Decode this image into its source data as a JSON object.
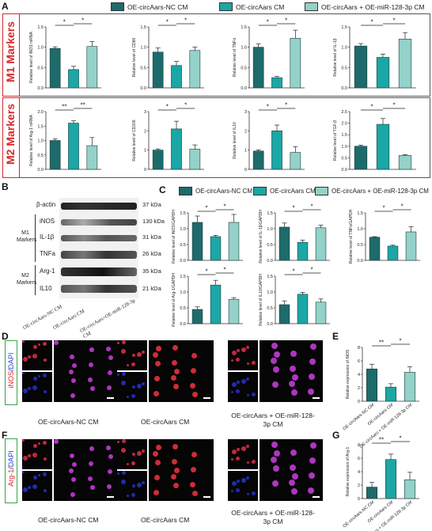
{
  "panel_labels": {
    "a": "A",
    "b": "B",
    "c": "C",
    "d": "D",
    "e": "E",
    "f": "F",
    "g": "G"
  },
  "colors": {
    "nc": "#1d6b6b",
    "oe": "#1aa7a5",
    "inh": "#93d1c9",
    "red": "#d9252a",
    "bar_edge": "#1f3b3b"
  },
  "legend_top": [
    {
      "label": "OE-circAars-NC CM",
      "color": "#1d6b6b"
    },
    {
      "label": "OE-circAars CM",
      "color": "#1aa7a5"
    },
    {
      "label": "OE-circAars + OE-miR-128-3p CM",
      "color": "#93d1c9"
    }
  ],
  "legend_c": [
    {
      "label": "OE-circAars-NC CM",
      "color": "#1d6b6b"
    },
    {
      "label": "OE-circAars CM",
      "color": "#1aa7a5"
    },
    {
      "label": "OE-circAars + OE-miR-128-3p CM",
      "color": "#93d1c9"
    }
  ],
  "sections": {
    "m1": "M1 Markers",
    "m2": "M2 Markers"
  },
  "sig": {
    "ss": "*",
    "dd": "**"
  },
  "chart_data": [
    {
      "type": "bar",
      "panel": "A",
      "ylabel": "Relative level of iNOS mRNA",
      "ylim": [
        0,
        1.5
      ],
      "ticks": [
        "0.0",
        "0.5",
        "1.0",
        "1.5"
      ],
      "values": [
        0.97,
        0.45,
        1.02
      ],
      "errors": [
        0.04,
        0.08,
        0.12
      ],
      "sig": [
        [
          "*",
          0,
          1
        ],
        [
          "*",
          1,
          2
        ]
      ]
    },
    {
      "type": "bar",
      "panel": "A",
      "ylabel": "Relative level of CD86",
      "ylim": [
        0,
        1.5
      ],
      "ticks": [
        "0.0",
        "0.5",
        "1.0",
        "1.5"
      ],
      "values": [
        0.88,
        0.55,
        0.92
      ],
      "errors": [
        0.1,
        0.1,
        0.08
      ],
      "sig": [
        [
          "*",
          0,
          1
        ],
        [
          "*",
          1,
          2
        ]
      ]
    },
    {
      "type": "bar",
      "panel": "A",
      "ylabel": "Relative level of TNFα",
      "ylim": [
        0,
        1.5
      ],
      "ticks": [
        "0.0",
        "0.5",
        "1.0",
        "1.5"
      ],
      "values": [
        1.0,
        0.25,
        1.22
      ],
      "errors": [
        0.08,
        0.03,
        0.2
      ],
      "sig": [
        [
          "*",
          0,
          1
        ],
        [
          "*",
          1,
          2
        ]
      ]
    },
    {
      "type": "bar",
      "panel": "A",
      "ylabel": "Relative level of IL-1β",
      "ylim": [
        0,
        1.5
      ],
      "ticks": [
        "0.0",
        "0.5",
        "1.0",
        "1.5"
      ],
      "values": [
        1.03,
        0.75,
        1.2
      ],
      "errors": [
        0.06,
        0.08,
        0.16
      ],
      "sig": [
        [
          "*",
          0,
          1
        ],
        [
          "*",
          1,
          2
        ]
      ]
    },
    {
      "type": "bar",
      "panel": "A",
      "ylabel": "Relative level of Arg-1 mRNA",
      "ylim": [
        0,
        2.0
      ],
      "ticks": [
        "0.0",
        "0.5",
        "1.0",
        "1.5",
        "2.0"
      ],
      "values": [
        1.0,
        1.6,
        0.82
      ],
      "errors": [
        0.05,
        0.08,
        0.28
      ],
      "sig": [
        [
          "**",
          0,
          1
        ],
        [
          "**",
          1,
          2
        ]
      ]
    },
    {
      "type": "bar",
      "panel": "A",
      "ylabel": "Relative level of CD206",
      "ylim": [
        0,
        3
      ],
      "ticks": [
        "0",
        "1",
        "2",
        "3"
      ],
      "values": [
        1.0,
        2.1,
        1.05
      ],
      "errors": [
        0.06,
        0.4,
        0.22
      ],
      "sig": [
        [
          "*",
          0,
          1
        ],
        [
          "*",
          1,
          2
        ]
      ]
    },
    {
      "type": "bar",
      "panel": "A",
      "ylabel": "Relative level of IL10",
      "ylim": [
        0,
        3
      ],
      "ticks": [
        "0",
        "1",
        "2",
        "3"
      ],
      "values": [
        0.95,
        2.0,
        0.88
      ],
      "errors": [
        0.06,
        0.3,
        0.3
      ],
      "sig": [
        [
          "*",
          0,
          1
        ],
        [
          "*",
          1,
          2
        ]
      ]
    },
    {
      "type": "bar",
      "panel": "A",
      "ylabel": "Relative level of TGF-β",
      "ylim": [
        0,
        2.5
      ],
      "ticks": [
        "0.0",
        "0.5",
        "1.0",
        "1.5",
        "2.0",
        "2.5"
      ],
      "values": [
        1.0,
        1.95,
        0.6
      ],
      "errors": [
        0.05,
        0.25,
        0.04
      ],
      "sig": [
        [
          "*",
          0,
          1
        ],
        [
          "*",
          1,
          2
        ]
      ]
    },
    {
      "type": "bar",
      "panel": "C",
      "ylabel": "Relative level of iNOS/GAPDH",
      "ylim": [
        0,
        1.5
      ],
      "ticks": [
        "0.0",
        "0.5",
        "1.0",
        "1.5"
      ],
      "values": [
        1.2,
        0.75,
        1.2
      ],
      "errors": [
        0.2,
        0.04,
        0.25
      ],
      "sig": [
        [
          "*",
          0,
          1
        ],
        [
          "*",
          1,
          2
        ]
      ]
    },
    {
      "type": "bar",
      "panel": "C",
      "ylabel": "Relative level of IL-1β/GAPDH",
      "ylim": [
        0,
        1.5
      ],
      "ticks": [
        "0.0",
        "0.5",
        "1.0",
        "1.5"
      ],
      "values": [
        1.05,
        0.57,
        1.03
      ],
      "errors": [
        0.13,
        0.07,
        0.08
      ],
      "sig": [
        [
          "*",
          0,
          1
        ],
        [
          "*",
          1,
          2
        ]
      ]
    },
    {
      "type": "bar",
      "panel": "C",
      "ylabel": "Relative level of TNFα/GAPDH",
      "ylim": [
        0,
        1.5
      ],
      "ticks": [
        "0.0",
        "0.5",
        "1.0",
        "1.5"
      ],
      "values": [
        0.73,
        0.45,
        0.9
      ],
      "errors": [
        0.02,
        0.03,
        0.16
      ],
      "sig": [
        [
          "*",
          0,
          1
        ],
        [
          "*",
          1,
          2
        ]
      ]
    },
    {
      "type": "bar",
      "panel": "C",
      "ylabel": "Relative level of Arg-1/GAPDH",
      "ylim": [
        0,
        1.5
      ],
      "ticks": [
        "0.0",
        "0.5",
        "1.0",
        "1.5"
      ],
      "values": [
        0.45,
        1.22,
        0.77
      ],
      "errors": [
        0.08,
        0.15,
        0.05
      ],
      "sig": [
        [
          "*",
          0,
          1
        ],
        [
          "*",
          1,
          2
        ]
      ]
    },
    {
      "type": "bar",
      "panel": "C",
      "ylabel": "Relative level of IL10/GAPDH",
      "ylim": [
        0,
        1.5
      ],
      "ticks": [
        "0.0",
        "0.5",
        "1.0",
        "1.5"
      ],
      "values": [
        0.6,
        0.93,
        0.68
      ],
      "errors": [
        0.12,
        0.06,
        0.1
      ],
      "sig": [
        [
          "*",
          0,
          1
        ],
        [
          "*",
          1,
          2
        ]
      ]
    },
    {
      "type": "bar",
      "panel": "E",
      "ylabel": "Relative expression of iNOS",
      "ylim": [
        0,
        8
      ],
      "ticks": [
        "0",
        "2",
        "4",
        "6",
        "8"
      ],
      "categories": [
        "OE-circAars-NC CM",
        "OE-circAars CM",
        "OE-circAars + OE-miR-128-3p CM"
      ],
      "values": [
        4.8,
        2.1,
        4.3
      ],
      "errors": [
        0.7,
        0.5,
        0.8
      ],
      "sig": [
        [
          "**",
          0,
          1
        ],
        [
          "*",
          1,
          2
        ]
      ]
    },
    {
      "type": "bar",
      "panel": "G",
      "ylabel": "Relative expression of Arg-1",
      "ylim": [
        0,
        8
      ],
      "ticks": [
        "0",
        "2",
        "4",
        "6",
        "8"
      ],
      "categories": [
        "OE-circAars-NC CM",
        "OE-circAars CM",
        "OE-circAars + OE-miR-128-3p CM"
      ],
      "values": [
        1.7,
        5.8,
        2.8
      ],
      "errors": [
        0.7,
        0.8,
        1.1
      ],
      "sig": [
        [
          "**",
          0,
          1
        ],
        [
          "*",
          1,
          2
        ]
      ]
    }
  ],
  "western": {
    "bands": [
      {
        "name": "β-actin",
        "kda": "37 kDa"
      },
      {
        "name": "iNOS",
        "kda": "130 kDa"
      },
      {
        "name": "IL-1β",
        "kda": "31 kDa"
      },
      {
        "name": "TNFa",
        "kda": "26 kDa"
      },
      {
        "name": "Arg-1",
        "kda": "35 kDa"
      },
      {
        "name": "IL10",
        "kda": "21 kDa"
      }
    ],
    "m1_label": "M1 Markers",
    "m2_label": "M2 Markers",
    "lanes": [
      "OE-circAars-NC CM",
      "OE-circAars CM",
      "OE-circAars+OE-miR-128-3p CM"
    ]
  },
  "panel_d": {
    "stain": "iNOS",
    "dapi": "DAPI",
    "groups": [
      "OE-circAars-NC CM",
      "OE-circAars CM",
      "OE-circAars + OE-miR-128-3p CM"
    ]
  },
  "panel_f": {
    "stain": "Arg-1",
    "dapi": "DAPI",
    "groups": [
      "OE-circAars-NC CM",
      "OE-circAars CM",
      "OE-circAars + OE-miR-128-3p CM"
    ]
  }
}
